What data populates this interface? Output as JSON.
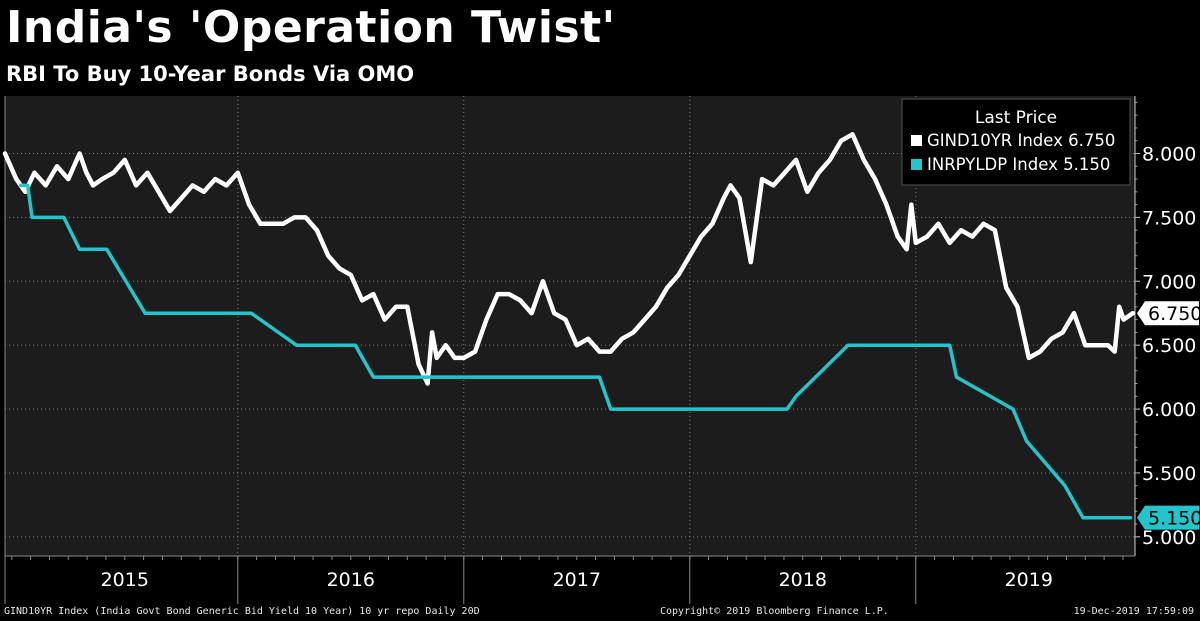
{
  "chart_data": {
    "type": "line",
    "title": "India's 'Operation Twist'",
    "subtitle": "RBI To Buy 10-Year Bonds Via OMO",
    "y_ticks": [
      "8.000",
      "7.500",
      "7.000",
      "6.500",
      "6.000",
      "5.500",
      "5.000"
    ],
    "y_tick_values": [
      8.0,
      7.5,
      7.0,
      6.5,
      6.0,
      5.5,
      5.0
    ],
    "ylim": [
      4.85,
      8.45
    ],
    "xlim": [
      2014.97,
      2019.97
    ],
    "x_ticks": [
      "2015",
      "2016",
      "2017",
      "2018",
      "2019"
    ],
    "x_tick_positions": [
      2015.5,
      2016.5,
      2017.5,
      2018.5,
      2019.5
    ],
    "year_boundaries": [
      2016.0,
      2017.0,
      2018.0,
      2019.0
    ],
    "legend": {
      "title": "Last Price",
      "placement": "top-right",
      "entries": [
        "GIND10YR Index 6.750",
        "INRPYLDP Index 5.150"
      ]
    },
    "series": [
      {
        "name": "GIND10YR Index",
        "last_label": "6.750",
        "color": "#ffffff",
        "x": [
          2014.97,
          2015.02,
          2015.06,
          2015.1,
          2015.15,
          2015.2,
          2015.25,
          2015.3,
          2015.33,
          2015.36,
          2015.4,
          2015.45,
          2015.5,
          2015.55,
          2015.6,
          2015.65,
          2015.7,
          2015.75,
          2015.8,
          2015.85,
          2015.9,
          2015.95,
          2016.0,
          2016.05,
          2016.1,
          2016.15,
          2016.2,
          2016.25,
          2016.3,
          2016.35,
          2016.4,
          2016.45,
          2016.5,
          2016.55,
          2016.6,
          2016.65,
          2016.7,
          2016.75,
          2016.8,
          2016.84,
          2016.86,
          2016.88,
          2016.92,
          2016.96,
          2017.0,
          2017.05,
          2017.1,
          2017.15,
          2017.2,
          2017.25,
          2017.3,
          2017.35,
          2017.4,
          2017.45,
          2017.5,
          2017.55,
          2017.6,
          2017.65,
          2017.7,
          2017.75,
          2017.8,
          2017.85,
          2017.9,
          2017.95,
          2018.0,
          2018.05,
          2018.1,
          2018.15,
          2018.18,
          2018.22,
          2018.27,
          2018.32,
          2018.37,
          2018.42,
          2018.47,
          2018.52,
          2018.57,
          2018.62,
          2018.67,
          2018.72,
          2018.77,
          2018.82,
          2018.87,
          2018.92,
          2018.96,
          2018.98,
          2019.0,
          2019.05,
          2019.1,
          2019.15,
          2019.2,
          2019.25,
          2019.3,
          2019.35,
          2019.4,
          2019.45,
          2019.5,
          2019.55,
          2019.6,
          2019.65,
          2019.7,
          2019.75,
          2019.8,
          2019.85,
          2019.88,
          2019.9,
          2019.92,
          2019.96
        ],
        "values": [
          8.0,
          7.8,
          7.7,
          7.85,
          7.75,
          7.9,
          7.8,
          8.0,
          7.85,
          7.75,
          7.8,
          7.85,
          7.95,
          7.75,
          7.85,
          7.7,
          7.55,
          7.65,
          7.75,
          7.7,
          7.8,
          7.75,
          7.85,
          7.6,
          7.45,
          7.45,
          7.45,
          7.5,
          7.5,
          7.4,
          7.2,
          7.1,
          7.05,
          6.85,
          6.9,
          6.7,
          6.8,
          6.8,
          6.35,
          6.2,
          6.6,
          6.4,
          6.5,
          6.4,
          6.4,
          6.45,
          6.7,
          6.9,
          6.9,
          6.85,
          6.75,
          7.0,
          6.75,
          6.7,
          6.5,
          6.55,
          6.45,
          6.45,
          6.55,
          6.6,
          6.7,
          6.8,
          6.95,
          7.05,
          7.2,
          7.35,
          7.45,
          7.65,
          7.75,
          7.65,
          7.15,
          7.8,
          7.75,
          7.85,
          7.95,
          7.7,
          7.85,
          7.95,
          8.1,
          8.15,
          7.95,
          7.8,
          7.6,
          7.35,
          7.25,
          7.6,
          7.3,
          7.35,
          7.45,
          7.3,
          7.4,
          7.35,
          7.45,
          7.4,
          6.95,
          6.8,
          6.4,
          6.45,
          6.55,
          6.6,
          6.75,
          6.5,
          6.5,
          6.5,
          6.45,
          6.8,
          6.7,
          6.75
        ]
      },
      {
        "name": "INRPYLDP Index",
        "last_label": "5.150",
        "color": "#20c6cc",
        "x": [
          2015.04,
          2015.07,
          2015.09,
          2015.12,
          2015.17,
          2015.23,
          2015.3,
          2015.37,
          2015.42,
          2015.59,
          2015.74,
          2016.06,
          2016.26,
          2016.52,
          2016.6,
          2017.6,
          2017.65,
          2017.78,
          2018.43,
          2018.47,
          2018.7,
          2019.05,
          2019.1,
          2019.15,
          2019.18,
          2019.43,
          2019.49,
          2019.66,
          2019.74,
          2019.95
        ],
        "values": [
          7.75,
          7.75,
          7.5,
          7.5,
          7.5,
          7.5,
          7.25,
          7.25,
          7.25,
          6.75,
          6.75,
          6.75,
          6.5,
          6.5,
          6.25,
          6.25,
          6.0,
          6.0,
          6.0,
          6.1,
          6.5,
          6.5,
          6.5,
          6.5,
          6.25,
          6.0,
          5.75,
          5.4,
          5.15,
          5.15
        ]
      }
    ]
  },
  "footer": {
    "left": "GIND10YR Index (India Govt Bond Generic Bid Yield 10 Year) 10 yr repo  Daily 20D",
    "center": "Copyright© 2019 Bloomberg Finance L.P.",
    "right": "19-Dec-2019 17:59:09"
  }
}
